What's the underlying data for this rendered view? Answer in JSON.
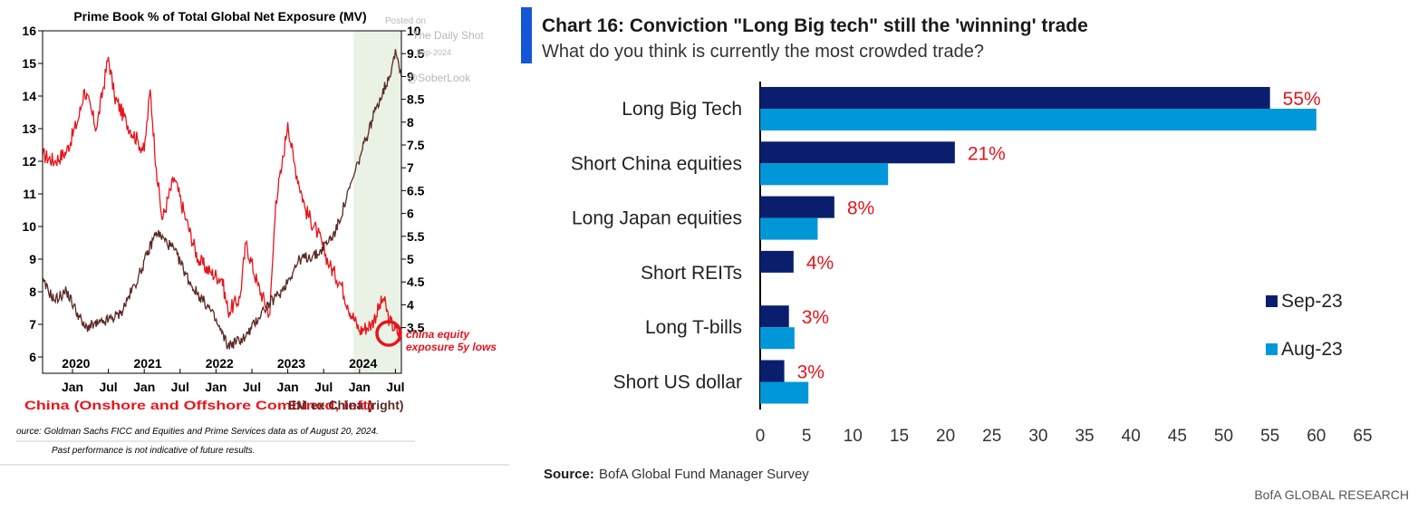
{
  "left_chart": {
    "title": "Prime Book % of Total Global Net Exposure (MV)",
    "watermark": [
      "Posted on",
      "The Daily Shot",
      "Sep-2024",
      "@SoberLook"
    ],
    "left_ticks": [
      "6",
      "7",
      "8",
      "9",
      "10",
      "11",
      "12",
      "13",
      "14",
      "15",
      "16"
    ],
    "right_ticks": [
      "3.5",
      "4",
      "4.5",
      "5",
      "5.5",
      "6",
      "6.5",
      "7",
      "7.5",
      "8",
      "8.5",
      "9",
      "9.5",
      "10"
    ],
    "month_labels": [
      "Jan",
      "Jul",
      "Jan",
      "Jul",
      "Jan",
      "Jul",
      "Jan",
      "Jul",
      "Jan",
      "Jul"
    ],
    "year_labels": [
      "2020",
      "2021",
      "2022",
      "2023",
      "2024"
    ],
    "annotation": [
      "china equity",
      "exposure 5y lows"
    ],
    "legend_left": "China (Onshore and Offshore Combined, left)",
    "legend_right": "EM ex China (right)",
    "source": "ource: Goldman Sachs FICC and Equities and Prime Services data as of August 20, 2024.",
    "disclaimer": "Past performance is not indicative of future results.",
    "colors": {
      "china": "#e8141c",
      "em": "#5a2a25",
      "shade": "#eaf2e6"
    }
  },
  "chart_data": [
    {
      "type": "line",
      "title": "Prime Book % of Total Global Net Exposure (MV)",
      "x_range": [
        "2019-08",
        "2024-08"
      ],
      "series": [
        {
          "name": "China (Onshore and Offshore Combined, left)",
          "axis": "left",
          "ylim": [
            5.5,
            16
          ],
          "points": [
            [
              "2019-08",
              12.2
            ],
            [
              "2019-10",
              12.0
            ],
            [
              "2019-12",
              12.3
            ],
            [
              "2020-02",
              13.3
            ],
            [
              "2020-03",
              14.2
            ],
            [
              "2020-05",
              13.0
            ],
            [
              "2020-07",
              15.2
            ],
            [
              "2020-08",
              14.0
            ],
            [
              "2020-10",
              13.2
            ],
            [
              "2020-12",
              12.6
            ],
            [
              "2021-01",
              12.3
            ],
            [
              "2021-02",
              14.2
            ],
            [
              "2021-03",
              11.8
            ],
            [
              "2021-04",
              10.2
            ],
            [
              "2021-06",
              11.5
            ],
            [
              "2021-08",
              10.2
            ],
            [
              "2021-10",
              9.0
            ],
            [
              "2021-12",
              8.6
            ],
            [
              "2022-02",
              8.4
            ],
            [
              "2022-03",
              7.4
            ],
            [
              "2022-05",
              7.8
            ],
            [
              "2022-06",
              9.5
            ],
            [
              "2022-08",
              8.2
            ],
            [
              "2022-10",
              7.3
            ],
            [
              "2022-11",
              10.8
            ],
            [
              "2022-12",
              11.8
            ],
            [
              "2023-01",
              13.2
            ],
            [
              "2023-02",
              12.0
            ],
            [
              "2023-04",
              10.5
            ],
            [
              "2023-06",
              9.8
            ],
            [
              "2023-08",
              8.8
            ],
            [
              "2023-10",
              8.2
            ],
            [
              "2023-11",
              7.6
            ],
            [
              "2024-01",
              6.8
            ],
            [
              "2024-03",
              7.0
            ],
            [
              "2024-05",
              7.8
            ],
            [
              "2024-06",
              7.1
            ],
            [
              "2024-08",
              6.6
            ]
          ]
        },
        {
          "name": "EM ex China (right)",
          "axis": "right",
          "ylim": [
            2.5,
            10
          ],
          "points": [
            [
              "2019-08",
              4.5
            ],
            [
              "2019-10",
              4.1
            ],
            [
              "2019-12",
              4.3
            ],
            [
              "2020-03",
              3.5
            ],
            [
              "2020-06",
              3.6
            ],
            [
              "2020-09",
              3.8
            ],
            [
              "2020-12",
              4.6
            ],
            [
              "2021-03",
              5.6
            ],
            [
              "2021-06",
              5.2
            ],
            [
              "2021-09",
              4.4
            ],
            [
              "2021-12",
              3.9
            ],
            [
              "2022-03",
              3.1
            ],
            [
              "2022-06",
              3.3
            ],
            [
              "2022-09",
              3.9
            ],
            [
              "2022-12",
              4.3
            ],
            [
              "2023-03",
              5.0
            ],
            [
              "2023-06",
              5.1
            ],
            [
              "2023-09",
              5.6
            ],
            [
              "2023-12",
              6.8
            ],
            [
              "2024-02",
              7.6
            ],
            [
              "2024-04",
              8.4
            ],
            [
              "2024-06",
              9.0
            ],
            [
              "2024-07",
              9.6
            ],
            [
              "2024-08",
              9.0
            ]
          ]
        }
      ],
      "shaded_range": [
        "2023-12",
        "2024-08"
      ]
    },
    {
      "type": "bar",
      "orientation": "horizontal",
      "title": "Chart 16: Conviction \"Long Big tech\" still the 'winning' trade",
      "subtitle": "What do you think is currently the most crowded trade?",
      "categories": [
        "Long Big Tech",
        "Short China equities",
        "Long Japan equities",
        "Short REITs",
        "Long T-bills",
        "Short US dollar"
      ],
      "series": [
        {
          "name": "Sep-23",
          "color": "#0a1e6e",
          "values": [
            55,
            21,
            8,
            3.6,
            3.1,
            2.6
          ]
        },
        {
          "name": "Aug-23",
          "color": "#0097d9",
          "values": [
            60,
            13.8,
            6.2,
            null,
            3.7,
            5.2
          ]
        }
      ],
      "data_labels": [
        "55%",
        "21%",
        "8%",
        "4%",
        "3%",
        "3%"
      ],
      "xlim": [
        0,
        65
      ],
      "xticks": [
        "0",
        "5",
        "10",
        "15",
        "20",
        "25",
        "30",
        "35",
        "40",
        "45",
        "50",
        "55",
        "60",
        "65"
      ],
      "legend": "right"
    }
  ],
  "right_chart": {
    "source_label": "Source:",
    "source_text": "BofA Global Fund Manager Survey",
    "brand": "BofA GLOBAL RESEARCH",
    "accent": "#1457d6",
    "label_color": "#e8141c"
  }
}
